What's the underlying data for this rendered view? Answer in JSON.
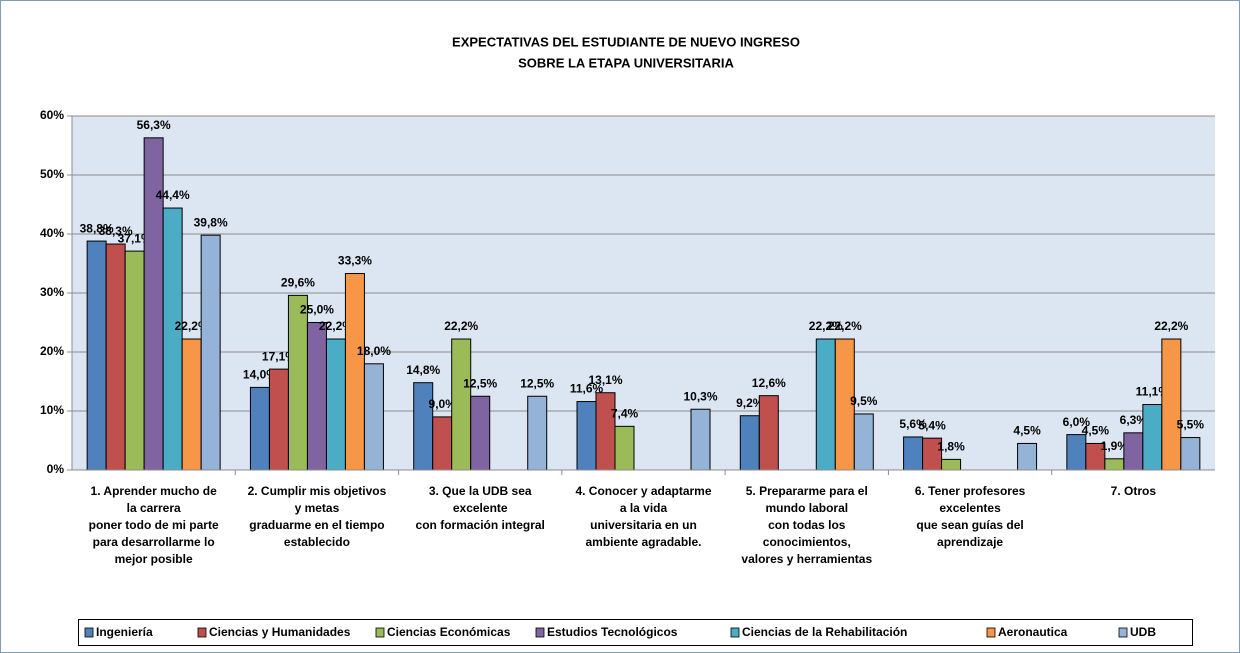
{
  "chart_data": {
    "type": "bar",
    "title": [
      "EXPECTATIVAS DEL ESTUDIANTE DE NUEVO INGRESO",
      "SOBRE LA ETAPA UNIVERSITARIA"
    ],
    "categories": [
      [
        "1.  Aprender mucho de",
        "la carrera",
        "poner todo de mi parte",
        "para desarrollarme lo",
        "mejor posible"
      ],
      [
        "2. Cumplir mis objetivos",
        "y metas",
        "graduarme en el tiempo",
        "establecido"
      ],
      [
        "3.  Que la UDB sea",
        "excelente",
        "con formación integral"
      ],
      [
        "4.  Conocer y adaptarme",
        "a la vida",
        "universitaria en un",
        "ambiente agradable."
      ],
      [
        "5.  Prepararme para el",
        "mundo laboral",
        "con todas los",
        "conocimientos,",
        "valores y herramientas"
      ],
      [
        "6.  Tener profesores",
        "excelentes",
        "que sean guías del",
        "aprendizaje"
      ],
      [
        "7.  Otros"
      ]
    ],
    "series": [
      {
        "name": "Ingeniería",
        "color": "#4f81bd",
        "values": [
          38.8,
          14.0,
          14.8,
          11.6,
          9.2,
          5.6,
          6.0
        ],
        "value_labels": [
          "38,8%",
          "14,0%",
          "14,8%",
          "11,6%",
          "9,2%",
          "5,6%",
          "6,0%"
        ]
      },
      {
        "name": "Ciencias y Humanidades",
        "color": "#c0504d",
        "values": [
          38.3,
          17.1,
          9.0,
          13.1,
          12.6,
          5.4,
          4.5
        ],
        "value_labels": [
          "38,3%",
          "17,1%",
          "9,0%",
          "13,1%",
          "12,6%",
          "5,4%",
          "4,5%"
        ]
      },
      {
        "name": "Ciencias Económicas",
        "color": "#9bbb59",
        "values": [
          37.1,
          29.6,
          22.2,
          7.4,
          null,
          1.8,
          1.9
        ],
        "value_labels": [
          "37,1%",
          "29,6%",
          "22,2%",
          "7,4%",
          null,
          "1,8%",
          "1,9%"
        ]
      },
      {
        "name": "Estudios Tecnológicos",
        "color": "#8064a2",
        "values": [
          56.3,
          25.0,
          12.5,
          null,
          null,
          null,
          6.3
        ],
        "value_labels": [
          "56,3%",
          "25,0%",
          "12,5%",
          null,
          null,
          null,
          "6,3%"
        ]
      },
      {
        "name": "Ciencias de la Rehabilitación",
        "color": "#4bacc6",
        "values": [
          44.4,
          22.2,
          null,
          null,
          22.2,
          null,
          11.1
        ],
        "value_labels": [
          "44,4%",
          "22,2%",
          null,
          null,
          "22,2%",
          null,
          "11,1%"
        ]
      },
      {
        "name": "Aeronautica",
        "color": "#f79646",
        "values": [
          22.2,
          33.3,
          null,
          null,
          22.2,
          null,
          22.2
        ],
        "value_labels": [
          "22,2%",
          "33,3%",
          null,
          null,
          "22,2%",
          null,
          "22,2%"
        ]
      },
      {
        "name": "UDB",
        "color": "#95b3d7",
        "values": [
          39.8,
          18.0,
          12.5,
          10.3,
          9.5,
          4.5,
          5.5
        ],
        "value_labels": [
          "39,8%",
          "18,0%",
          "12,5%",
          "10,3%",
          "9,5%",
          "4,5%",
          "5,5%"
        ]
      }
    ],
    "ylim": [
      0,
      60
    ],
    "yticks": [
      {
        "value": 0,
        "label": "0%"
      },
      {
        "value": 10,
        "label": "10%"
      },
      {
        "value": 20,
        "label": "20%"
      },
      {
        "value": 30,
        "label": "30%"
      },
      {
        "value": 40,
        "label": "40%"
      },
      {
        "value": 50,
        "label": "50%"
      },
      {
        "value": 60,
        "label": "60%"
      }
    ],
    "grid": true,
    "legend": "bottom"
  }
}
